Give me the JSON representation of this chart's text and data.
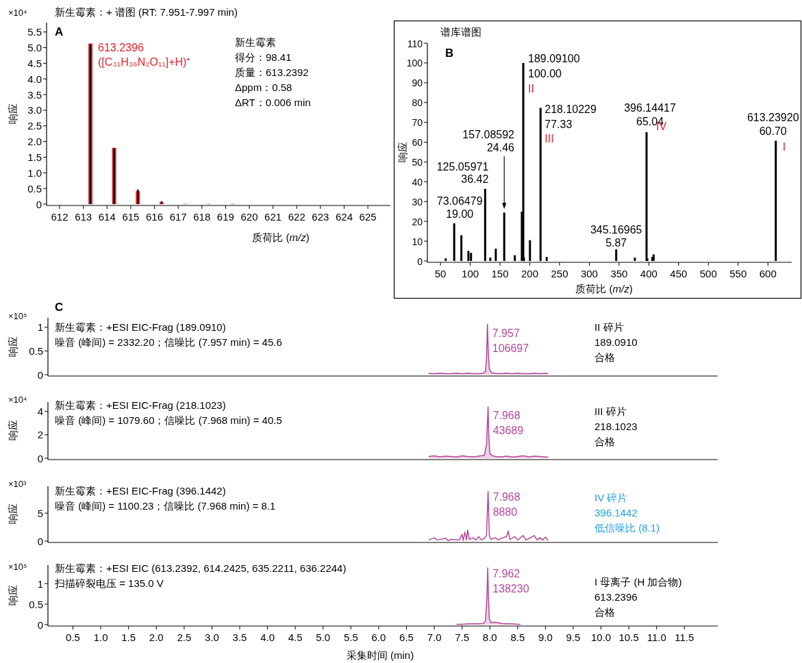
{
  "chart_data": [
    {
      "type": "bar",
      "title": "新生霉素：+ 谱图 (RT:   7.951-7.997 min)",
      "xlabel": "质荷比 (*m/z*)",
      "ylabel": "响应",
      "xlim": [
        611.45,
        625.95
      ],
      "ylim": [
        0,
        5.8
      ],
      "xticks": [
        612,
        613,
        614,
        615,
        616,
        617,
        618,
        619,
        620,
        621,
        622,
        623,
        624,
        625
      ],
      "yticks": [
        0,
        0.5,
        {
          "value": 1,
          "label": "1.0"
        },
        1.5,
        {
          "value": 2,
          "label": "2.0"
        },
        2.5,
        {
          "value": 3,
          "label": "3.0"
        },
        3.5,
        {
          "value": 4,
          "label": "4.0"
        },
        4.5,
        {
          "value": 5,
          "label": "5.0"
        },
        5.5
      ],
      "series": [
        {
          "color": "#e8202a",
          "x": [
            613.3,
            614.3,
            615.3,
            616.3
          ],
          "values": [
            5.13,
            1.8,
            0.42,
            0.06
          ]
        },
        {
          "color": "#000000",
          "x": [
            613.3,
            614.3,
            615.3,
            616.3
          ],
          "values": [
            5.1,
            1.78,
            0.47,
            0.09
          ]
        },
        {
          "color": "#d49ad4",
          "x": [
            617.3,
            618.3,
            619.3
          ],
          "values": [
            0.02,
            0.02,
            0.02
          ]
        }
      ],
      "annotations": [
        "×10⁴",
        "A",
        {
          "text": "613.2396",
          "x": 613.3,
          "y": 5.1
        },
        "([C₃₁H₃₆N₂O₁₁]+H)⁺",
        "新生霉素",
        "得分：98.41",
        "质量：613.2392",
        "Δppm：0.58",
        "ΔRT：0.006 min"
      ]
    },
    {
      "type": "bar",
      "title": "谱库谱图",
      "xlabel": "质荷比 (*m/z*)",
      "ylabel": "响应",
      "xlim": [
        28,
        640
      ],
      "ylim": [
        0,
        110
      ],
      "xticks": [
        50,
        100,
        150,
        200,
        250,
        300,
        350,
        400,
        450,
        500,
        550,
        600
      ],
      "yticks": [
        0,
        10,
        20,
        30,
        40,
        50,
        60,
        70,
        80,
        90,
        100,
        110
      ],
      "color": "#000000",
      "x": [
        58.8,
        73.06479,
        85.1,
        96.9,
        101.3,
        125.05971,
        133.7,
        142.9,
        157.08592,
        174.9,
        186.7,
        189.091,
        190.2,
        200.3,
        218.10229,
        228.4,
        345.16965,
        376.5,
        396.14417,
        397.4,
        405.8,
        408,
        613.2392
      ],
      "values": [
        1.3,
        19.0,
        13.0,
        5.1,
        4.1,
        36.42,
        1.7,
        6.2,
        24.46,
        2.9,
        24.9,
        100.0,
        1.7,
        10.5,
        77.33,
        2.0,
        5.87,
        1.7,
        65.04,
        1.3,
        2.0,
        3.3,
        60.7
      ],
      "annotations": [
        "B",
        {
          "text": "73.06479",
          "x": 73.06479,
          "y": 19.0
        },
        {
          "text": "19.00",
          "x": 73.06479,
          "y": 19.0
        },
        {
          "text": "125.05971",
          "x": 125.05971,
          "y": 36.42
        },
        {
          "text": "36.42",
          "x": 125.05971,
          "y": 36.42
        },
        "157.08592",
        "24.46",
        {
          "text": "189.09100",
          "x": 189.091,
          "y": 100.0
        },
        {
          "text": "100.00",
          "x": 189.091,
          "y": 100.0
        },
        {
          "text": "II",
          "x": 189.091,
          "y": 100.0
        },
        {
          "text": "218.10229",
          "x": 218.10229,
          "y": 77.33
        },
        {
          "text": "77.33",
          "x": 218.10229,
          "y": 77.33
        },
        {
          "text": "III",
          "x": 218.10229,
          "y": 77.33
        },
        {
          "text": "345.16965",
          "x": 345.16965,
          "y": 5.87
        },
        {
          "text": "5.87",
          "x": 345.16965,
          "y": 5.87
        },
        {
          "text": "396.14417",
          "x": 396.14417,
          "y": 65.04
        },
        {
          "text": "65.04",
          "x": 396.14417,
          "y": 65.04
        },
        {
          "text": "IV",
          "x": 396.14417,
          "y": 65.04
        },
        {
          "text": "613.23920",
          "x": 613.2392,
          "y": 60.7
        },
        {
          "text": "60.70",
          "x": 613.2392,
          "y": 60.7
        },
        {
          "text": "I",
          "x": 613.2392,
          "y": 60.7
        }
      ]
    },
    {
      "type": "area",
      "ylabel": "响应",
      "tick_labels": "y",
      "xlim": [
        0.05,
        12.1
      ],
      "ylim": [
        0,
        1.2
      ],
      "yticks": [
        0,
        0.5,
        1
      ],
      "color": "#b5479b",
      "x": [
        6.9,
        7.0,
        7.1,
        7.2,
        7.3,
        7.4,
        7.5,
        7.6,
        7.7,
        7.8,
        7.88,
        7.92,
        7.94,
        7.957,
        7.97,
        7.99,
        8.03,
        8.1,
        8.2,
        8.3,
        8.4,
        8.5,
        8.6,
        8.7,
        8.8,
        8.9,
        9.0,
        9.05
      ],
      "values": [
        0.03,
        0.02,
        0.03,
        0.02,
        0.02,
        0.03,
        0.02,
        0.03,
        0.02,
        0.02,
        0.03,
        0.06,
        0.35,
        1.06697,
        0.55,
        0.12,
        0.04,
        0.03,
        0.02,
        0.03,
        0.02,
        0.03,
        0.02,
        0.02,
        0.03,
        0.02,
        0.03,
        0.02
      ],
      "annotations": [
        "×10⁵",
        "C",
        "新生霉素：+ESI EIC-Frag (189.0910)",
        "噪音 (峰间) = 2332.20；信噪比 (7.957 min) = 45.6",
        {
          "text": "7.957",
          "x": 7.957,
          "y": 1.06697
        },
        {
          "text": "106697",
          "x": 7.957,
          "y": 1.06697
        },
        "II 碎片",
        "189.0910",
        "合格"
      ]
    },
    {
      "type": "area",
      "ylabel": "响应",
      "tick_labels": "y",
      "xlim": [
        0.05,
        12.1
      ],
      "ylim": [
        0,
        4.8
      ],
      "yticks": [
        0,
        2,
        4
      ],
      "color": "#b5479b",
      "x": [
        6.9,
        7.0,
        7.1,
        7.2,
        7.3,
        7.4,
        7.5,
        7.6,
        7.7,
        7.8,
        7.9,
        7.94,
        7.968,
        7.98,
        8.0,
        8.05,
        8.1,
        8.2,
        8.3,
        8.4,
        8.5,
        8.6,
        8.7,
        8.8,
        8.9,
        9.0,
        9.05
      ],
      "values": [
        0.15,
        0.2,
        0.12,
        0.18,
        0.15,
        0.1,
        0.2,
        0.15,
        0.12,
        0.18,
        0.25,
        1.2,
        4.3689,
        2.0,
        0.4,
        0.2,
        0.15,
        0.12,
        0.18,
        0.1,
        0.15,
        0.2,
        0.12,
        0.18,
        0.15,
        0.1,
        0.12
      ],
      "annotations": [
        "×10⁴",
        "新生霉素：+ESI EIC-Frag (218.1023)",
        "噪音 (峰间) = 1079.60；信噪比 (7.968 min) = 40.5",
        {
          "text": "7.968",
          "x": 7.968,
          "y": 4.3689
        },
        {
          "text": "43689",
          "x": 7.968,
          "y": 4.3689
        },
        "III 碎片",
        "218.1023",
        "合格"
      ]
    },
    {
      "type": "line",
      "ylabel": "响应",
      "tick_labels": "y",
      "xlim": [
        0.05,
        12.1
      ],
      "ylim": [
        0,
        9.8
      ],
      "yticks": [
        0,
        5
      ],
      "color": "#b5479b",
      "x": [
        6.9,
        7.0,
        7.05,
        7.2,
        7.25,
        7.3,
        7.45,
        7.5,
        7.52,
        7.55,
        7.58,
        7.6,
        7.63,
        7.7,
        7.75,
        7.8,
        7.85,
        7.9,
        7.94,
        7.968,
        7.99,
        8.02,
        8.1,
        8.15,
        8.2,
        8.3,
        8.33,
        8.36,
        8.45,
        8.5,
        8.6,
        8.65,
        8.75,
        8.8,
        8.85,
        8.9,
        8.95,
        9.0,
        9.05
      ],
      "values": [
        0.2,
        0.6,
        0.2,
        0.5,
        0.1,
        0.3,
        0.2,
        1.2,
        0.1,
        1.6,
        0.2,
        2.0,
        0.3,
        0.6,
        0.2,
        0.8,
        0.2,
        0.5,
        1.0,
        8.88,
        1.0,
        0.3,
        0.6,
        0.2,
        0.5,
        0.8,
        1.8,
        0.3,
        0.8,
        0.2,
        1.0,
        0.2,
        0.7,
        1.0,
        0.2,
        0.6,
        0.2,
        0.7,
        0.1
      ],
      "annotations": [
        "×10³",
        "新生霉素：+ESI EIC-Frag (396.1442)",
        "噪音 (峰间) = 1100.23；信噪比 (7.968 min) = 8.1",
        {
          "text": "7.968",
          "x": 7.968,
          "y": 8.88
        },
        {
          "text": "8880",
          "x": 7.968,
          "y": 8.88
        },
        "IV 碎片",
        "396.1442",
        "低信噪比 (8.1)"
      ]
    },
    {
      "type": "area",
      "xlabel": "采集时间 (min)",
      "ylabel": "响应",
      "xlim": [
        0.05,
        12.1
      ],
      "ylim": [
        0,
        1.45
      ],
      "yticks": [
        0,
        0.5,
        1
      ],
      "xticks": [
        0.5,
        {
          "value": 1,
          "label": "1.0"
        },
        1.5,
        {
          "value": 2,
          "label": "2.0"
        },
        2.5,
        {
          "value": 3,
          "label": "3.0"
        },
        3.5,
        {
          "value": 4,
          "label": "4.0"
        },
        4.5,
        {
          "value": 5,
          "label": "5.0"
        },
        5.5,
        {
          "value": 6,
          "label": "6.0"
        },
        6.5,
        {
          "value": 7,
          "label": "7.0"
        },
        7.5,
        {
          "value": 8,
          "label": "8.0"
        },
        8.5,
        {
          "value": 9,
          "label": "9.0"
        },
        9.5,
        {
          "value": 10,
          "label": "10.0"
        },
        10.5,
        {
          "value": 11,
          "label": "11.0"
        },
        11.5
      ],
      "color": "#b5479b",
      "x": [
        7.4,
        7.5,
        7.6,
        7.7,
        7.8,
        7.88,
        7.92,
        7.945,
        7.962,
        7.975,
        7.99,
        8.02,
        8.08,
        8.15,
        8.2,
        8.3,
        8.4,
        8.5,
        8.55
      ],
      "values": [
        0.01,
        0.01,
        0.02,
        0.02,
        0.02,
        0.03,
        0.08,
        0.6,
        1.3823,
        0.7,
        0.15,
        0.05,
        0.06,
        0.05,
        0.03,
        0.02,
        0.02,
        0.01,
        0.01
      ],
      "annotations": [
        "×10⁵",
        "新生霉素：+ESI EIC (613.2392, 614.2425, 635.2211, 636.2244)",
        "扫描碎裂电压 = 135.0 V",
        {
          "text": "7.962",
          "x": 7.962,
          "y": 1.3823
        },
        {
          "text": "138230",
          "x": 7.962,
          "y": 1.3823
        },
        "I 母离子 (H 加合物)",
        "613.2396",
        "合格"
      ]
    }
  ]
}
